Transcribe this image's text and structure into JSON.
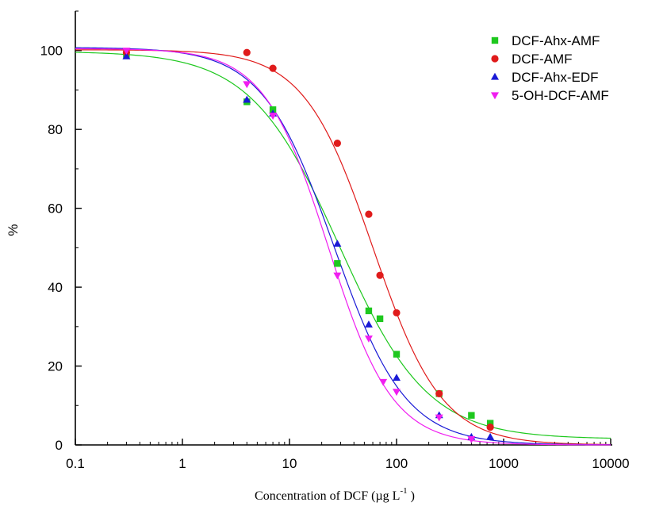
{
  "chart_data": {
    "type": "scatter",
    "xscale": "log",
    "xlim": [
      0.1,
      10000
    ],
    "ylim": [
      0,
      110
    ],
    "x_ticks": [
      "0.1",
      "1",
      "10",
      "100",
      "1000",
      "10000"
    ],
    "y_ticks": [
      "0",
      "20",
      "40",
      "60",
      "80",
      "100"
    ],
    "xlabel_main": "Concentration of DCF (µg L",
    "xlabel_sup": "-1",
    "xlabel_end": " )",
    "ylabel": "%",
    "grid": false,
    "legend_position": "top-right",
    "series": [
      {
        "name": "DCF-Ahx-AMF",
        "color": "#1ec81e",
        "marker": "square",
        "x": [
          0.3,
          4,
          7,
          28,
          55,
          70,
          100,
          250,
          500,
          750
        ],
        "y": [
          99,
          87,
          85,
          46,
          34,
          32,
          23,
          13,
          7.5,
          5.5
        ],
        "fit": {
          "top": 99.8,
          "bottom": 1.5,
          "ic50": 29,
          "hill": 1.05
        }
      },
      {
        "name": "DCF-AMF",
        "color": "#e01b1b",
        "marker": "circle",
        "x": [
          0.3,
          4,
          7,
          28,
          55,
          70,
          100,
          250,
          750
        ],
        "y": [
          99.5,
          99.5,
          95.5,
          76.5,
          58.5,
          43,
          33.5,
          13,
          4.5
        ],
        "fit": {
          "top": 100.2,
          "bottom": 0,
          "ic50": 60,
          "hill": 1.35
        }
      },
      {
        "name": "DCF-Ahx-EDF",
        "color": "#1a1ad6",
        "marker": "triangle-up",
        "x": [
          0.3,
          4,
          7,
          28,
          55,
          100,
          250,
          500,
          750
        ],
        "y": [
          98.5,
          87.5,
          84,
          51,
          30.5,
          17,
          7.5,
          2,
          2
        ],
        "fit": {
          "top": 100.8,
          "bottom": 0,
          "ic50": 26,
          "hill": 1.3
        }
      },
      {
        "name": "5-OH-DCF-AMF",
        "color": "#f01ef0",
        "marker": "triangle-down",
        "x": [
          0.3,
          4,
          7,
          28,
          55,
          75,
          100,
          250,
          500
        ],
        "y": [
          100,
          91.5,
          83.5,
          43,
          27,
          16,
          13.5,
          7,
          1.5
        ],
        "fit": {
          "top": 100.5,
          "bottom": 0,
          "ic50": 23,
          "hill": 1.45
        }
      }
    ]
  }
}
